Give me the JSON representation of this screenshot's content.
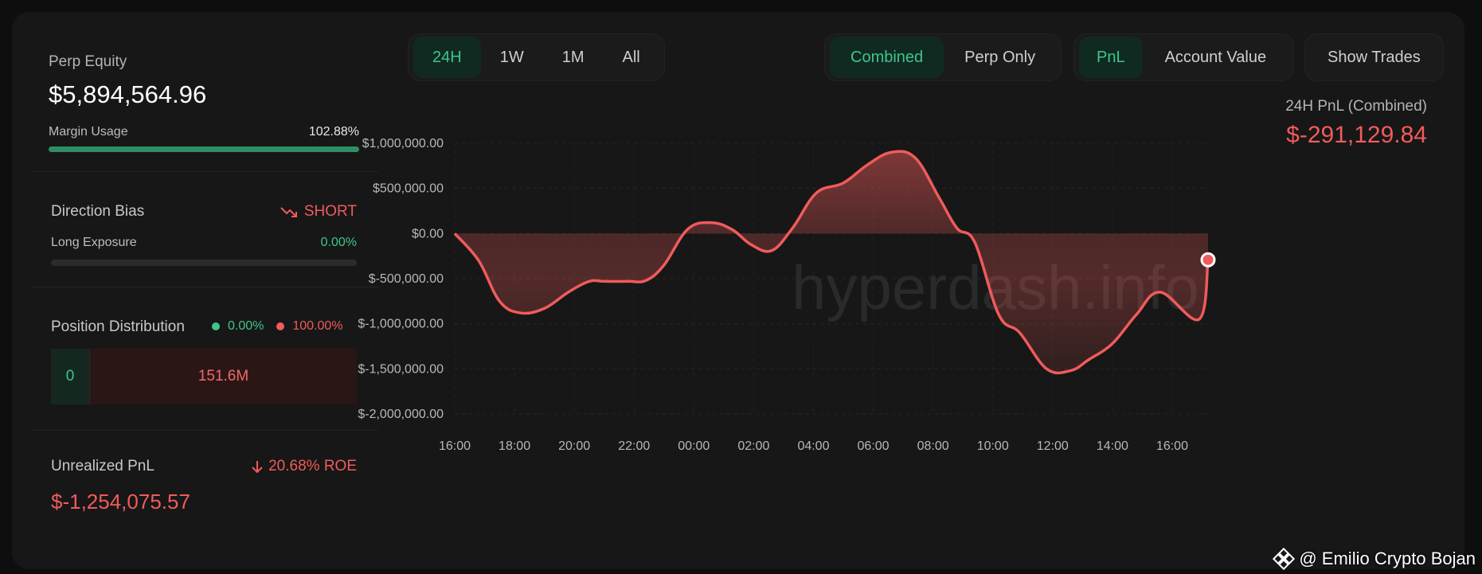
{
  "left": {
    "perp_equity_label": "Perp Equity",
    "perp_equity_value": "$5,894,564.96",
    "margin_usage_label": "Margin Usage",
    "margin_usage_value": "102.88%",
    "margin_usage_fraction": 1.0,
    "direction_bias_label": "Direction Bias",
    "direction_bias_value": "SHORT",
    "long_exposure_label": "Long Exposure",
    "long_exposure_value": "0.00%",
    "long_exposure_fraction": 0.0,
    "position_distribution_label": "Position Distribution",
    "long_pct": "0.00%",
    "short_pct": "100.00%",
    "long_amount": "0",
    "short_amount": "151.6M",
    "unrealized_pnl_label": "Unrealized PnL",
    "roe_value": "20.68% ROE",
    "unrealized_pnl_value": "$-1,254,075.57"
  },
  "timeframe_tabs": [
    "24H",
    "1W",
    "1M",
    "All"
  ],
  "timeframe_active": "24H",
  "mode_tabs": [
    "Combined",
    "Perp Only"
  ],
  "mode_active": "Combined",
  "metric_tabs": [
    "PnL",
    "Account Value"
  ],
  "metric_active": "PnL",
  "show_trades_label": "Show Trades",
  "pnl_header": {
    "title": "24H PnL (Combined)",
    "value": "$-291,129.84"
  },
  "watermark": "hyperdash.info",
  "credit": "@ Emilio Crypto Bojan",
  "colors": {
    "green": "#3fc58a",
    "red": "#f05b5b",
    "bg": "#171717"
  },
  "chart_data": {
    "type": "area",
    "ytick_labels": [
      "$1,000,000.00",
      "$500,000.00",
      "$0.00",
      "$-500,000.00",
      "$-1,000,000.00",
      "$-1,500,000.00",
      "$-2,000,000.00"
    ],
    "yticks": [
      1000000,
      500000,
      0,
      -500000,
      -1000000,
      -1500000,
      -2000000
    ],
    "ylim": [
      -2000000,
      1000000
    ],
    "xtick_labels": [
      "16:00",
      "18:00",
      "20:00",
      "22:00",
      "00:00",
      "02:00",
      "04:00",
      "06:00",
      "08:00",
      "10:00",
      "12:00",
      "14:00",
      "16:00"
    ],
    "x_hours": [
      0,
      0.8,
      1.5,
      2.2,
      3.0,
      3.8,
      4.5,
      5.0,
      5.8,
      6.4,
      7.0,
      7.8,
      8.6,
      9.3,
      9.9,
      10.6,
      11.3,
      12.1,
      13.0,
      13.8,
      14.6,
      15.4,
      16.2,
      16.8,
      17.4,
      18.2,
      18.9,
      19.8,
      20.6,
      21.2,
      22.0,
      22.8,
      23.6,
      24.9,
      25.2
    ],
    "values": [
      0,
      -300000,
      -750000,
      -880000,
      -830000,
      -650000,
      -530000,
      -530000,
      -530000,
      -520000,
      -350000,
      50000,
      120000,
      40000,
      -120000,
      -190000,
      60000,
      450000,
      560000,
      760000,
      900000,
      840000,
      400000,
      60000,
      -100000,
      -900000,
      -1100000,
      -1500000,
      -1520000,
      -1400000,
      -1220000,
      -900000,
      -650000,
      -950000,
      -291130
    ],
    "series": [
      {
        "name": "24H PnL (Combined)",
        "color": "#f05b5b"
      }
    ],
    "grid": true
  }
}
